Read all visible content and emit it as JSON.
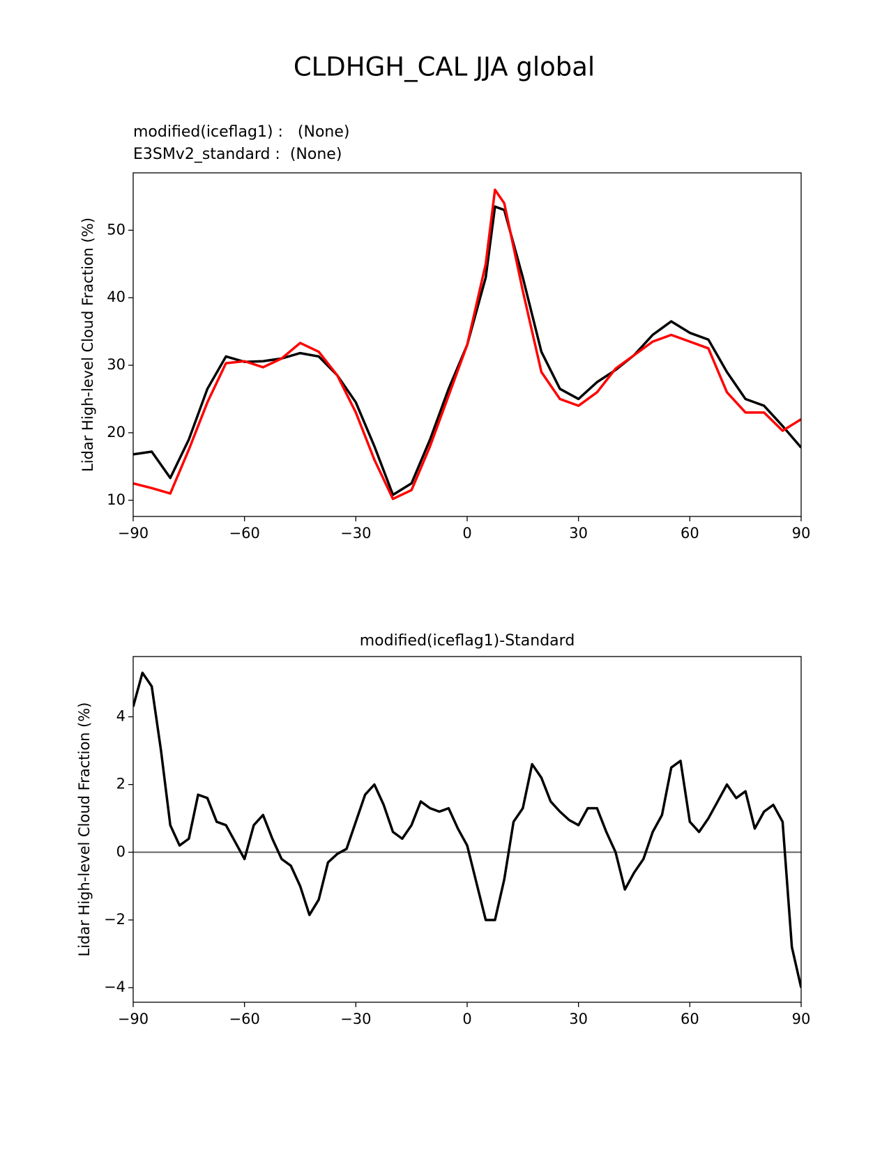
{
  "figure_title": "CLDHGH_CAL JJA global",
  "chart_data": [
    {
      "type": "line",
      "ylabel": "Lidar High-level Cloud Fraction (%)",
      "x": [
        -90,
        -85,
        -80,
        -75,
        -70,
        -65,
        -60,
        -55,
        -50,
        -45,
        -40,
        -35,
        -30,
        -25,
        -20,
        -15,
        -10,
        -5,
        0,
        5,
        7.5,
        10,
        15,
        20,
        25,
        30,
        35,
        40,
        45,
        50,
        55,
        60,
        65,
        70,
        75,
        80,
        85,
        90
      ],
      "series": [
        {
          "name": "modified(iceflag1) :   (None)",
          "color": "#000000",
          "values": [
            16.8,
            17.2,
            13.3,
            19,
            26.5,
            31.3,
            30.5,
            30.6,
            31,
            31.8,
            31.3,
            28.5,
            24.5,
            18,
            10.8,
            12.5,
            19,
            26.5,
            33,
            43,
            53.5,
            53,
            43,
            32,
            26.5,
            25,
            27.5,
            29.3,
            31.5,
            34.5,
            36.5,
            34.8,
            33.8,
            29,
            25,
            24,
            21,
            17.8
          ]
        },
        {
          "name": "E3SMv2_standard :  (None)",
          "color": "#ff0000",
          "values": [
            12.5,
            11.8,
            11,
            17.5,
            24.5,
            30.3,
            30.6,
            29.7,
            31,
            33.3,
            32,
            28.5,
            23,
            16,
            10.2,
            11.5,
            18,
            25.5,
            33,
            45,
            56,
            54,
            41,
            29,
            25,
            24,
            26,
            29.5,
            31.5,
            33.5,
            34.5,
            33.5,
            32.5,
            26,
            23,
            23,
            20.3,
            22
          ]
        }
      ],
      "xlim": [
        -90,
        90
      ],
      "xticks": [
        {
          "value": -90,
          "label": "−90"
        },
        {
          "value": -60,
          "label": "−60"
        },
        {
          "value": -30,
          "label": "−30"
        },
        0,
        30,
        60,
        90
      ],
      "ylim": [
        7.6,
        58.5
      ],
      "yticks": [
        10,
        20,
        30,
        40,
        50
      ]
    },
    {
      "type": "line",
      "title": "modified(iceflag1)-Standard",
      "ylabel": "Lidar High-level Cloud Fraction (%)",
      "x": [
        -90,
        -87.5,
        -85,
        -82.5,
        -80,
        -77.5,
        -75,
        -72.5,
        -70,
        -67.5,
        -65,
        -62.5,
        -60,
        -57.5,
        -55,
        -52.5,
        -50,
        -47.5,
        -45,
        -42.5,
        -40,
        -37.5,
        -35,
        -32.5,
        -30,
        -27.5,
        -25,
        -22.5,
        -20,
        -17.5,
        -15,
        -12.5,
        -10,
        -7.5,
        -5,
        -2.5,
        0,
        2.5,
        5,
        7.5,
        10,
        12.5,
        15,
        17.5,
        20,
        22.5,
        25,
        27.5,
        30,
        32.5,
        35,
        37.5,
        40,
        42.5,
        45,
        47.5,
        50,
        52.5,
        55,
        57.5,
        60,
        62.5,
        65,
        67.5,
        70,
        72.5,
        75,
        77.5,
        80,
        82.5,
        85,
        87.5,
        90
      ],
      "series": [
        {
          "color": "#000000",
          "values": [
            4.3,
            5.3,
            4.9,
            3.0,
            0.8,
            0.2,
            0.4,
            1.7,
            1.6,
            0.9,
            0.8,
            0.3,
            -0.2,
            0.8,
            1.1,
            0.4,
            -0.2,
            -0.4,
            -1.0,
            -1.85,
            -1.4,
            -0.3,
            -0.05,
            0.1,
            0.9,
            1.7,
            2.0,
            1.4,
            0.6,
            0.4,
            0.8,
            1.5,
            1.3,
            1.2,
            1.3,
            0.7,
            0.2,
            -0.9,
            -2.0,
            -2.0,
            -0.8,
            0.9,
            1.3,
            2.6,
            2.2,
            1.5,
            1.2,
            0.95,
            0.8,
            1.3,
            1.3,
            0.6,
            0.0,
            -1.1,
            -0.6,
            -0.2,
            0.6,
            1.1,
            2.5,
            2.7,
            0.9,
            0.6,
            1.0,
            1.5,
            2.0,
            1.6,
            1.8,
            0.7,
            1.2,
            1.4,
            0.9,
            -2.8,
            -4.0
          ]
        }
      ],
      "hline": 0,
      "hline_color": "#808080",
      "xlim": [
        -90,
        90
      ],
      "xticks": [
        {
          "value": -90,
          "label": "−90"
        },
        {
          "value": -60,
          "label": "−60"
        },
        {
          "value": -30,
          "label": "−30"
        },
        0,
        30,
        60,
        90
      ],
      "ylim": [
        -4.43,
        5.78
      ],
      "yticks": [
        {
          "value": -4,
          "label": "−4"
        },
        {
          "value": -2,
          "label": "−2"
        },
        0,
        2,
        4
      ]
    }
  ]
}
